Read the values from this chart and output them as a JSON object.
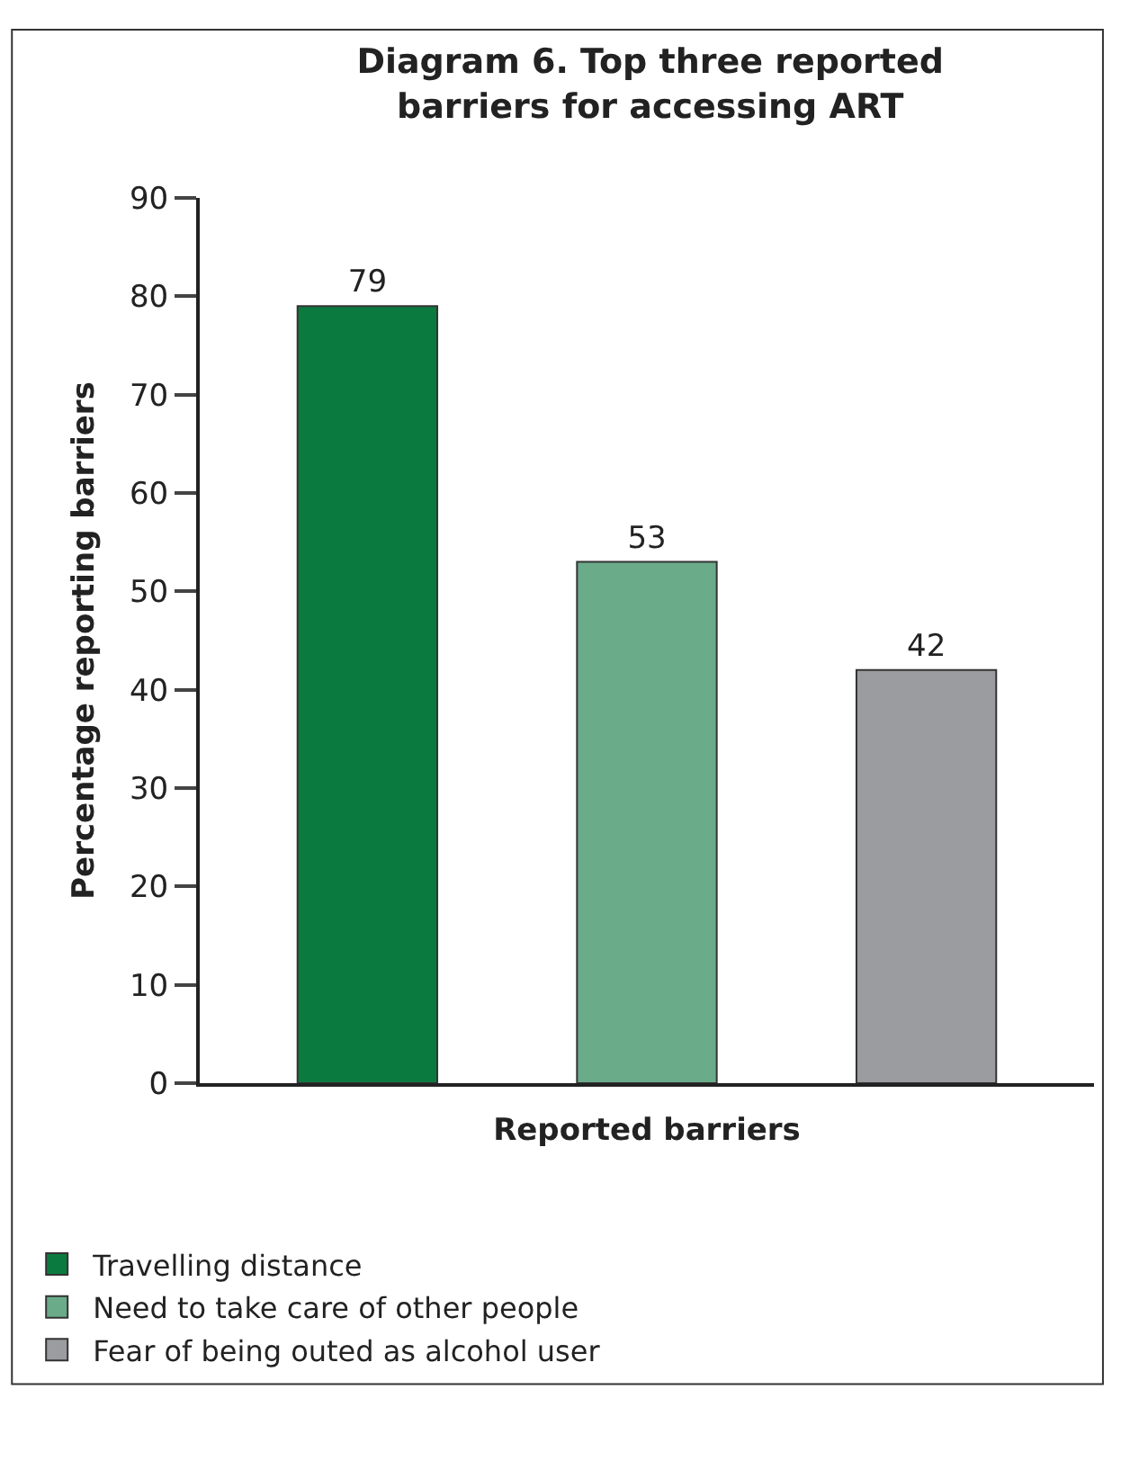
{
  "chart_data": {
    "type": "bar",
    "title": "Diagram 6. Top three reported barriers for accessing ART",
    "xlabel": "Reported barriers",
    "ylabel": "Percentage reporting barriers",
    "categories": [
      null,
      null,
      null
    ],
    "series": [
      {
        "name": "Travelling distance",
        "color": "#0b7a3e",
        "values": [
          79,
          null,
          null
        ]
      },
      {
        "name": "Need to take care of other people",
        "color": "#6aab8a",
        "values": [
          null,
          53,
          null
        ]
      },
      {
        "name": "Fear of being outed as alcohol user",
        "color": "#9b9ca0",
        "values": [
          null,
          null,
          42
        ]
      }
    ],
    "ylim": [
      0,
      90
    ],
    "yticks": [
      0,
      10,
      20,
      30,
      40,
      50,
      60,
      70,
      80,
      90
    ],
    "data_labels": true,
    "legend": "bottom"
  }
}
